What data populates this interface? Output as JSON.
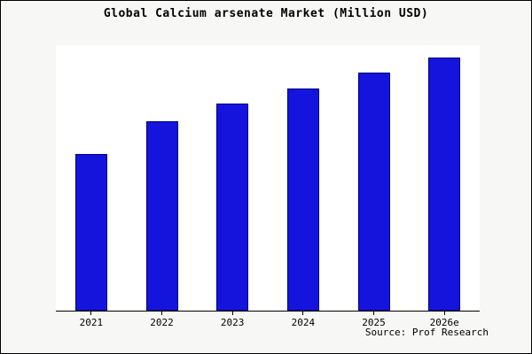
{
  "title": "Global Calcium arsenate Market (Million USD)",
  "source": "Source: Prof Research",
  "chart_data": {
    "type": "bar",
    "title": "Global Calcium arsenate Market (Million USD)",
    "categories": [
      "2021",
      "2022",
      "2023",
      "2024",
      "2025",
      "2026e"
    ],
    "values": [
      62,
      75,
      82,
      88,
      94,
      100
    ],
    "xlabel": "",
    "ylabel": "",
    "ylim": [
      0,
      105
    ],
    "grid": false,
    "legend_position": "none",
    "bar_color": "#1414dc",
    "bar_edge_color": "#000080",
    "plot_background": "#ffffff",
    "page_background": "#f7f7f5",
    "annotation": "Source: Prof Research"
  }
}
